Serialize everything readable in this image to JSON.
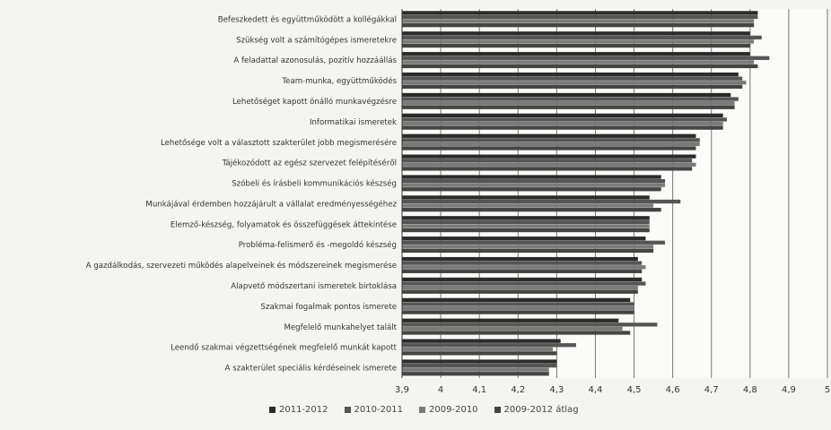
{
  "chart_data": {
    "type": "bar",
    "orientation": "horizontal",
    "categories": [
      "Befeszkedett és együttműködött a kollégákkal",
      "Szükség volt a számítógépes ismeretekre",
      "A feladattal azonosulás, pozitív hozzáállás",
      "Team-munka, együttműködés",
      "Lehetőséget kapott önálló munkavégzésre",
      "Informatikai ismeretek",
      "Lehetősége volt a választott szakterület jobb megismerésére",
      "Tájékozódott az egész szervezet felépítéséről",
      "Szóbeli és írásbeli kommunikációs készség",
      "Munkájával érdemben hozzájárult a vállalat eredményességéhez",
      "Elemző-készség, folyamatok és összefüggések áttekintése",
      "Probléma-felismerő és -megoldó készség",
      "A gazdálkodás, szervezeti működés alapelveinek és módszereinek megismerése",
      "Alapvető módszertani ismeretek birtoklása",
      "Szakmai fogalmak pontos ismerete",
      "Megfelelő munkahelyet talált",
      "Leendő szakmai végzettségének megfelelő munkát kapott",
      "A szakterület speciális kérdéseinek ismerete"
    ],
    "series": [
      {
        "name": "2011-2012",
        "values": [
          4.82,
          4.8,
          4.8,
          4.77,
          4.75,
          4.73,
          4.66,
          4.66,
          4.57,
          4.54,
          4.54,
          4.53,
          4.51,
          4.52,
          4.49,
          4.46,
          4.31,
          4.3
        ]
      },
      {
        "name": "2010-2011",
        "values": [
          4.82,
          4.83,
          4.85,
          4.78,
          4.77,
          4.74,
          4.67,
          4.65,
          4.58,
          4.62,
          4.54,
          4.58,
          4.52,
          4.53,
          4.5,
          4.56,
          4.35,
          4.3
        ]
      },
      {
        "name": "2009-2010",
        "values": [
          4.81,
          4.81,
          4.81,
          4.79,
          4.76,
          4.73,
          4.67,
          4.66,
          4.58,
          4.55,
          4.54,
          4.55,
          4.53,
          4.51,
          4.5,
          4.47,
          4.29,
          4.28
        ]
      },
      {
        "name": "2009-2012 átlag",
        "values": [
          4.81,
          4.8,
          4.82,
          4.78,
          4.76,
          4.73,
          4.66,
          4.65,
          4.57,
          4.57,
          4.54,
          4.55,
          4.52,
          4.51,
          4.5,
          4.49,
          4.3,
          4.28
        ]
      }
    ],
    "xlim": [
      3.9,
      5.0
    ],
    "xticks": [
      "3,9",
      "4",
      "4,1",
      "4,2",
      "4,3",
      "4,4",
      "4,5",
      "4,6",
      "4,7",
      "4,8",
      "4,9",
      "5"
    ],
    "grid": true,
    "legend_position": "bottom",
    "colors": [
      "#2b2b2b",
      "#555555",
      "#7a7a7a",
      "#444444"
    ]
  }
}
